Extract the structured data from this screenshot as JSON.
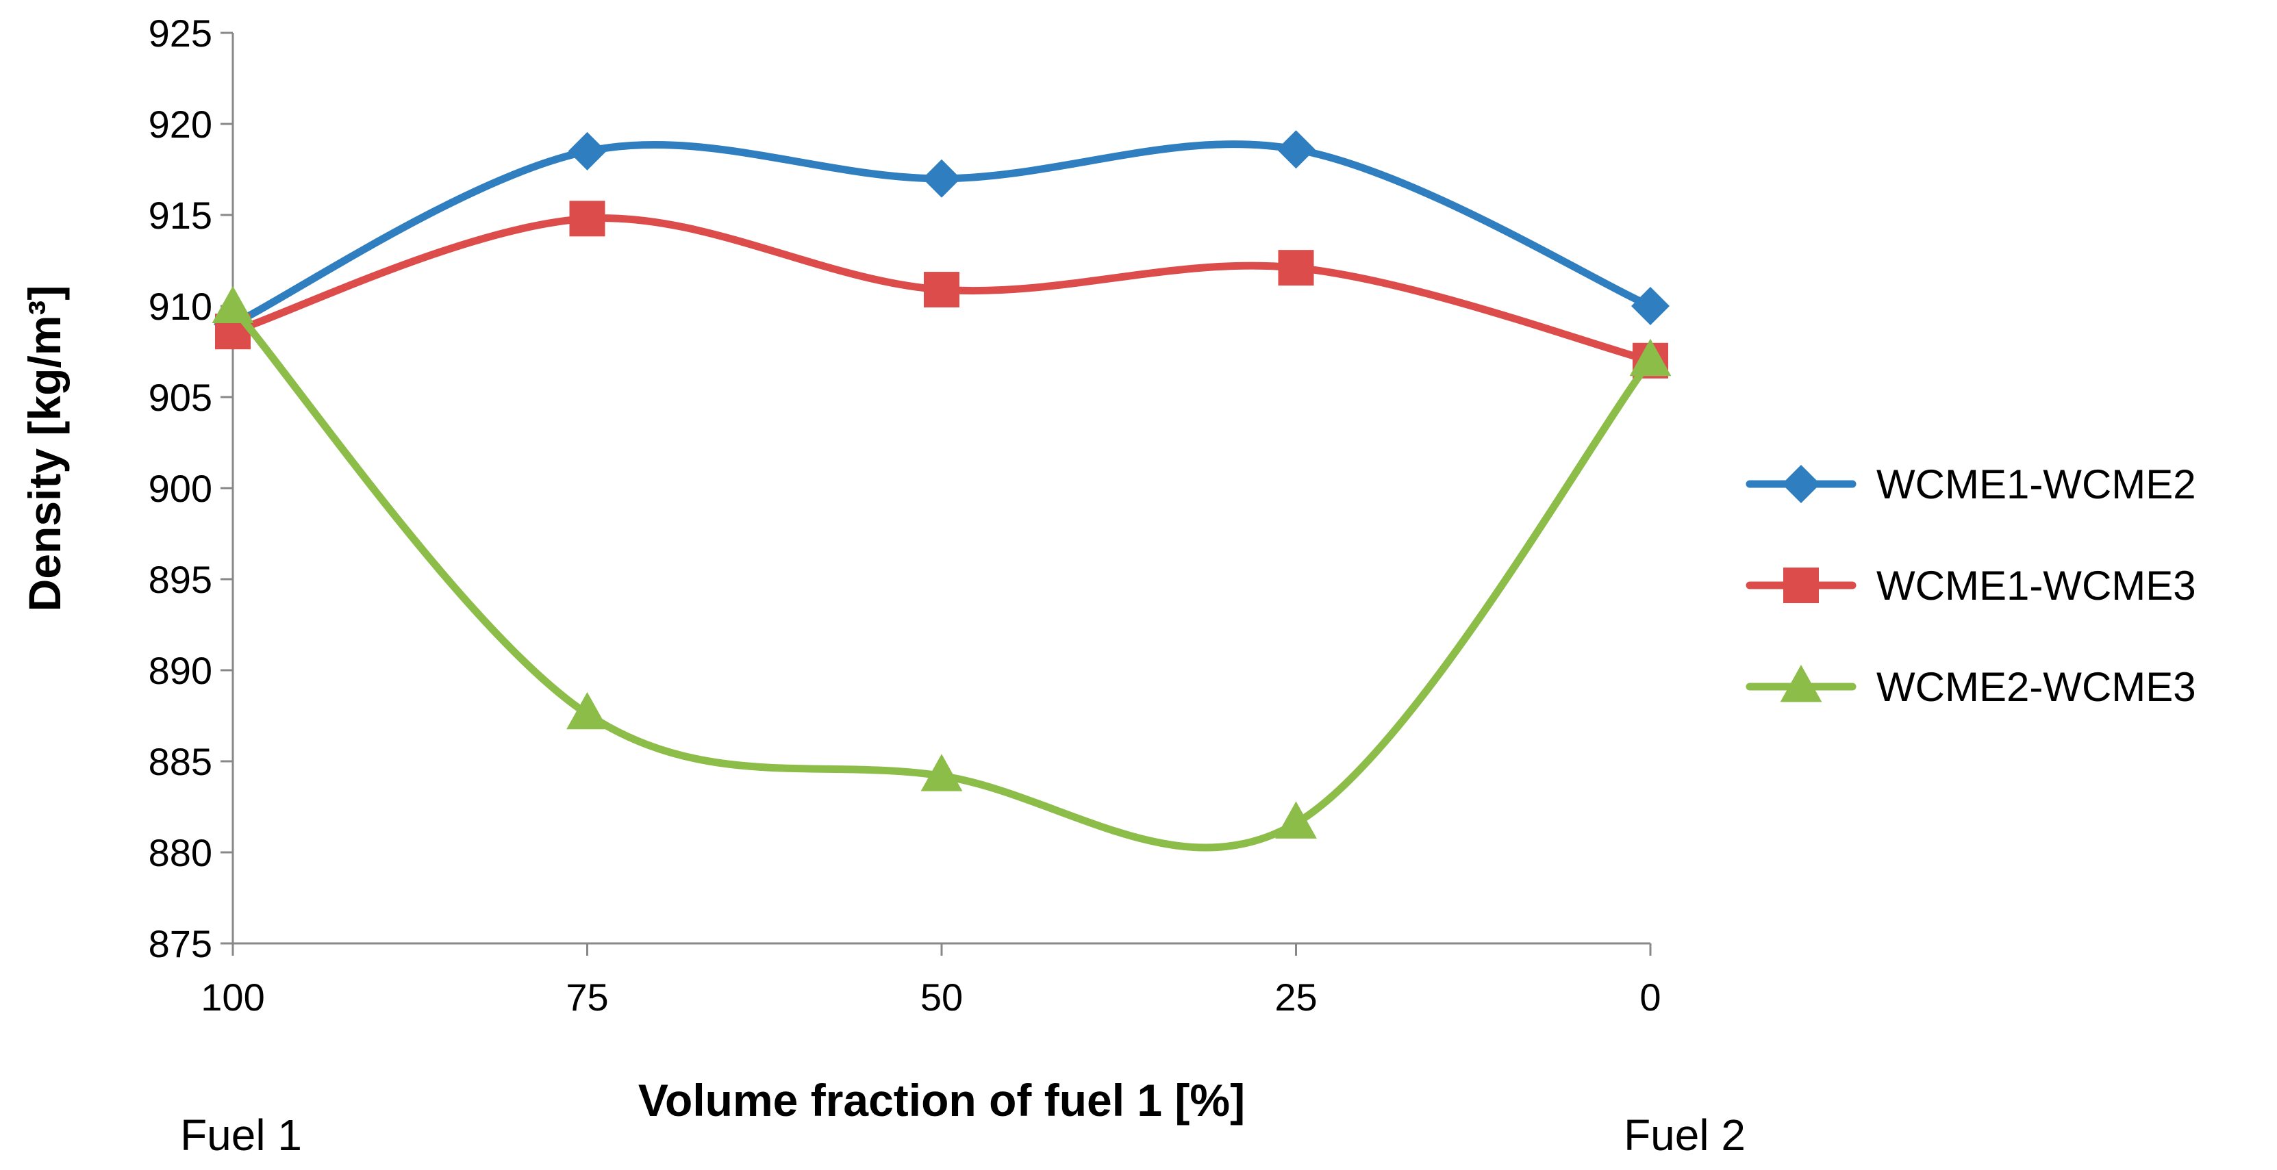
{
  "chart_data": {
    "type": "line",
    "smooth": true,
    "title": "",
    "xlabel": "Volume fraction of fuel 1 [%]",
    "ylabel": "Density [kg/m³]",
    "categories": [
      "100",
      "75",
      "50",
      "25",
      "0"
    ],
    "x_endpoint_labels": {
      "left": "Fuel 1",
      "right": "Fuel 2"
    },
    "ylim": [
      875,
      925
    ],
    "yticks": [
      875,
      880,
      885,
      890,
      895,
      900,
      905,
      910,
      915,
      920,
      925
    ],
    "grid": false,
    "legend_position": "right",
    "series": [
      {
        "name": "WCME1-WCME2",
        "color": "#2E7EC0",
        "marker": "diamond",
        "values": [
          909.0,
          918.5,
          917.0,
          918.6,
          910.0
        ]
      },
      {
        "name": "WCME1-WCME3",
        "color": "#DB4C4A",
        "marker": "square",
        "values": [
          908.6,
          914.8,
          910.9,
          912.1,
          907.0
        ]
      },
      {
        "name": "WCME2-WCME3",
        "color": "#8CBD48",
        "marker": "triangle",
        "values": [
          909.9,
          887.6,
          884.2,
          881.6,
          907.0
        ]
      }
    ]
  }
}
